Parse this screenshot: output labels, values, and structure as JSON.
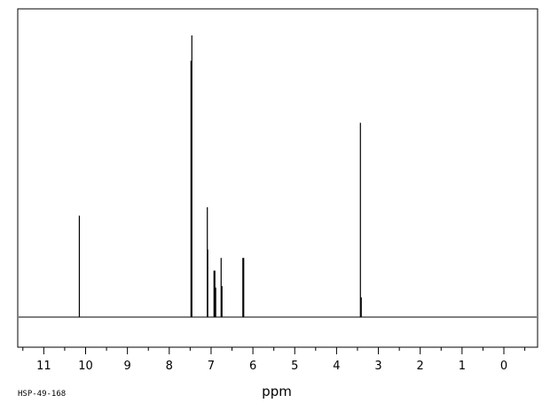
{
  "chart_data": {
    "type": "line",
    "title": "",
    "xlabel": "ppm",
    "ylabel": "",
    "sample_id": "HSP-49-168",
    "xlim": [
      11.8,
      -0.8
    ],
    "ylim": [
      0,
      1
    ],
    "x_reversed": true,
    "grid": false,
    "x_major_ticks": [
      11,
      10,
      9,
      8,
      7,
      6,
      5,
      4,
      3,
      2,
      1,
      0
    ],
    "tick_labels": [
      "11",
      "10",
      "9",
      "8",
      "7",
      "6",
      "5",
      "4",
      "3",
      "2",
      "1",
      "0"
    ],
    "peaks": [
      {
        "ppm": 10.15,
        "intensity": 0.36
      },
      {
        "ppm": 7.48,
        "intensity": 0.91
      },
      {
        "ppm": 7.46,
        "intensity": 1.0
      },
      {
        "ppm": 7.09,
        "intensity": 0.39
      },
      {
        "ppm": 7.08,
        "intensity": 0.24
      },
      {
        "ppm": 6.93,
        "intensity": 0.165
      },
      {
        "ppm": 6.91,
        "intensity": 0.165
      },
      {
        "ppm": 6.89,
        "intensity": 0.105
      },
      {
        "ppm": 6.76,
        "intensity": 0.21
      },
      {
        "ppm": 6.74,
        "intensity": 0.11
      },
      {
        "ppm": 6.24,
        "intensity": 0.21
      },
      {
        "ppm": 6.22,
        "intensity": 0.21
      },
      {
        "ppm": 3.43,
        "intensity": 0.69
      },
      {
        "ppm": 3.41,
        "intensity": 0.07
      }
    ]
  }
}
